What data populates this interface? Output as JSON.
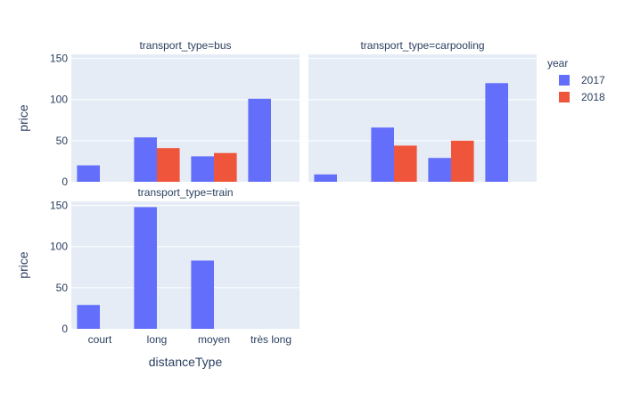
{
  "chart_data": {
    "type": "bar",
    "barmode": "group",
    "categories": [
      "court",
      "long",
      "moyen",
      "très long"
    ],
    "xlabel": "distanceType",
    "ylabel": "price",
    "ylim": [
      0,
      155
    ],
    "yticks": [
      0,
      50,
      100,
      150
    ],
    "grid": true,
    "legend": {
      "title": "year",
      "placement": "top-right",
      "entries": [
        {
          "name": "2017",
          "color": "#636efa"
        },
        {
          "name": "2018",
          "color": "#ef553b"
        }
      ]
    },
    "facets": [
      {
        "title": "transport_type=bus",
        "series": [
          {
            "name": "2017",
            "values": [
              20,
              54,
              31,
              101
            ]
          },
          {
            "name": "2018",
            "values": [
              null,
              41,
              35,
              null
            ]
          }
        ]
      },
      {
        "title": "transport_type=carpooling",
        "series": [
          {
            "name": "2017",
            "values": [
              9,
              66,
              29,
              120
            ]
          },
          {
            "name": "2018",
            "values": [
              null,
              44,
              50,
              null
            ]
          }
        ]
      },
      {
        "title": "transport_type=train",
        "series": [
          {
            "name": "2017",
            "values": [
              29,
              148,
              83,
              null
            ]
          },
          {
            "name": "2018",
            "values": [
              null,
              null,
              null,
              null
            ]
          }
        ]
      }
    ]
  }
}
